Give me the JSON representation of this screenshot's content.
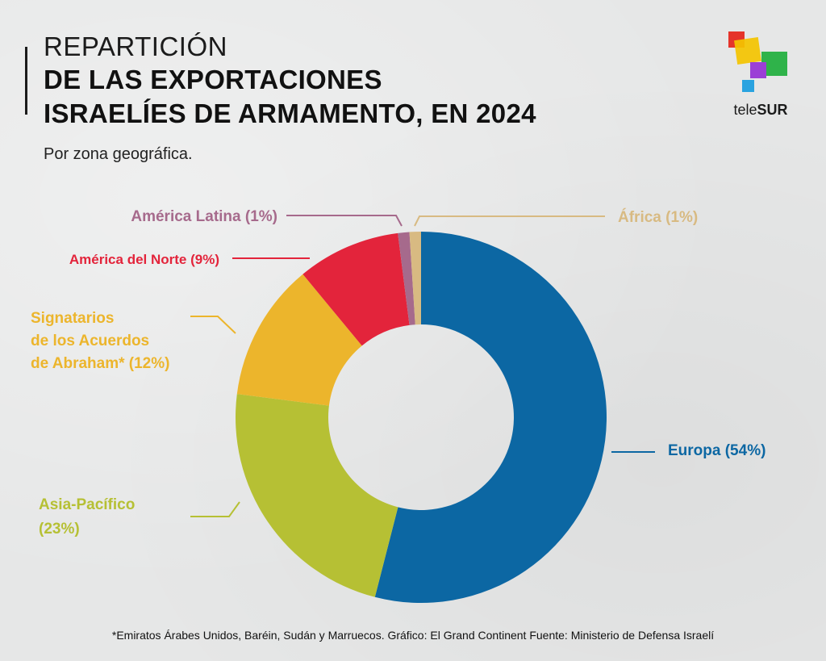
{
  "header": {
    "title_line1": "REPARTICIÓN",
    "title_line2": "DE LAS EXPORTACIONES",
    "title_line3": "ISRAELÍES DE ARMAMENTO, EN 2024",
    "subtitle": "Por zona geográfica."
  },
  "brand": {
    "name_prefix": "tele",
    "name_suffix": "SUR",
    "logo_colors": [
      "#e5342a",
      "#f4c400",
      "#9b3fd6",
      "#2fb34a",
      "#2aa3e0"
    ]
  },
  "chart_data": {
    "type": "pie",
    "style": "donut",
    "title": "Repartición de las exportaciones israelíes de armamento, en 2024",
    "subtitle": "Por zona geográfica.",
    "unit": "%",
    "slices": [
      {
        "name": "Europa",
        "label": "Europa (54%)",
        "value": 54,
        "color": "#0c67a3"
      },
      {
        "name": "Asia-Pacífico",
        "label_lines": [
          "Asia-Pacífico",
          "(23%)"
        ],
        "value": 23,
        "color": "#b6c034"
      },
      {
        "name": "Signatarios de los Acuerdos de Abraham*",
        "label_lines": [
          "Signatarios",
          "de los Acuerdos",
          "de Abraham* (12%)"
        ],
        "value": 12,
        "color": "#ecb52c"
      },
      {
        "name": "América del Norte",
        "label": "América del Norte (9%)",
        "value": 9,
        "color": "#e3243b"
      },
      {
        "name": "América Latina",
        "label": "América Latina (1%)",
        "value": 1,
        "color": "#a66a8c"
      },
      {
        "name": "África",
        "label": "África (1%)",
        "value": 1,
        "color": "#d8ba82"
      }
    ]
  },
  "footnote": "*Emiratos Árabes Unidos, Baréin, Sudán y Marruecos. Gráfico: El Grand Continent Fuente: Ministerio de Defensa Israelí"
}
